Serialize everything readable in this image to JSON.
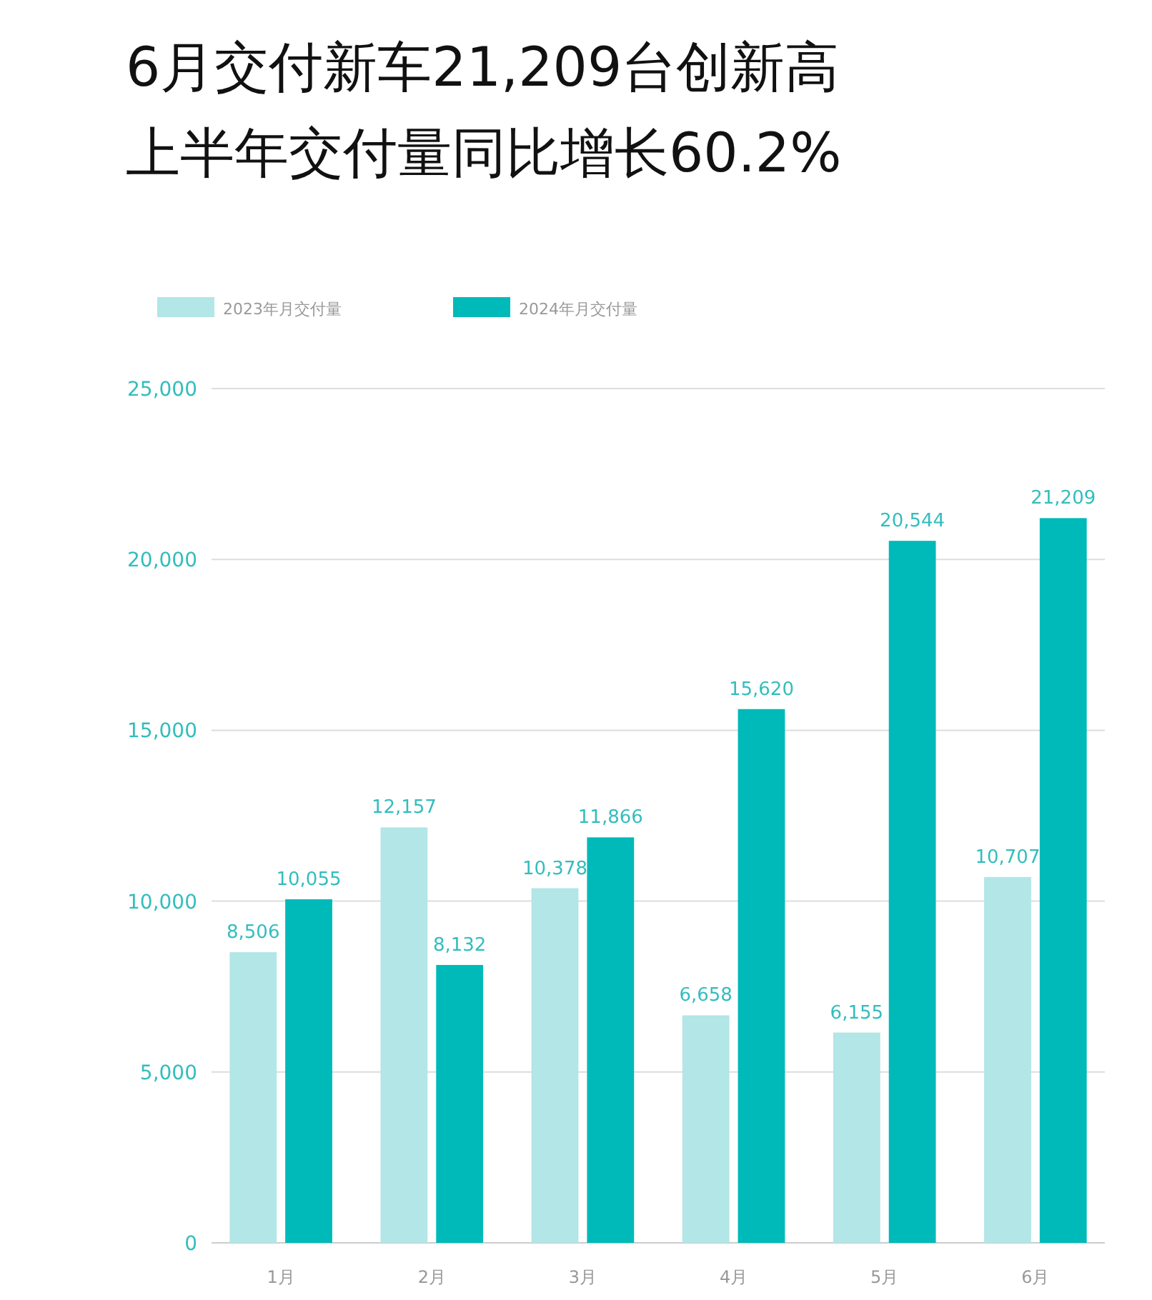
{
  "chart_data": {
    "type": "bar",
    "title": "6月交付新车21,209台创新高",
    "subtitle": "上半年交付量同比增长60.2%",
    "categories": [
      "1月",
      "2月",
      "3月",
      "4月",
      "5月",
      "6月"
    ],
    "series": [
      {
        "name": "2023年月交付量",
        "color": "#b3e6e6",
        "values": [
          8506,
          12157,
          10378,
          6658,
          6155,
          10707
        ],
        "value_labels": [
          "8,506",
          "12,157",
          "10,378",
          "6,658",
          "6,155",
          "10,707"
        ]
      },
      {
        "name": "2024年月交付量",
        "color": "#00b9b9",
        "values": [
          10055,
          8132,
          11866,
          15620,
          20544,
          21209
        ],
        "value_labels": [
          "10,055",
          "8,132",
          "11,866",
          "15,620",
          "20,544",
          "21,209"
        ]
      }
    ],
    "ylim": [
      0,
      25000
    ],
    "yticks": [
      {
        "value": 0,
        "label": "0"
      },
      {
        "value": 5000,
        "label": "5,000"
      },
      {
        "value": 10000,
        "label": "10,000"
      },
      {
        "value": 15000,
        "label": "15,000"
      },
      {
        "value": 20000,
        "label": "20,000"
      },
      {
        "value": 25000,
        "label": "25,000"
      }
    ],
    "grid": "y",
    "legend": "top left"
  }
}
